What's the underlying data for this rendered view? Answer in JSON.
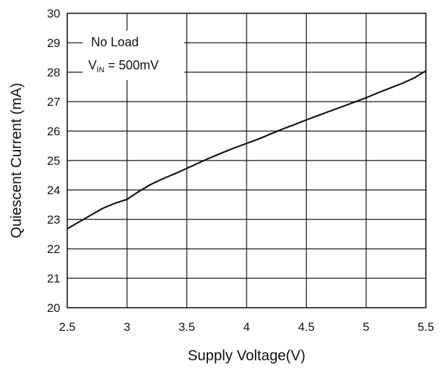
{
  "chart_data": {
    "type": "line",
    "xlabel": "Supply Voltage(V)",
    "ylabel": "Quiescent Current (mA)",
    "xlim": [
      2.5,
      5.5
    ],
    "ylim": [
      20,
      30
    ],
    "xticks": [
      2.5,
      3,
      3.5,
      4,
      4.5,
      5,
      5.5
    ],
    "xtick_labels": [
      "2.5",
      "3",
      "3.5",
      "4",
      "4.5",
      "5",
      "5.5"
    ],
    "yticks": [
      20,
      21,
      22,
      23,
      24,
      25,
      26,
      27,
      28,
      29,
      30
    ],
    "ytick_labels": [
      "20",
      "21",
      "22",
      "23",
      "24",
      "25",
      "26",
      "27",
      "28",
      "29",
      "30"
    ],
    "grid": true,
    "annotation": {
      "line1": "No Load",
      "line2_prefix": "V",
      "line2_sub": "IN",
      "line2_suffix": " = 500mV"
    },
    "series": [
      {
        "x": [
          2.5,
          2.6,
          2.7,
          2.8,
          2.9,
          3.0,
          3.1,
          3.2,
          3.3,
          3.4,
          3.5,
          3.6,
          3.7,
          3.8,
          3.9,
          4.0,
          4.1,
          4.2,
          4.3,
          4.4,
          4.5,
          4.6,
          4.7,
          4.8,
          4.9,
          5.0,
          5.1,
          5.2,
          5.3,
          5.4,
          5.5
        ],
        "y": [
          22.68,
          22.92,
          23.15,
          23.38,
          23.55,
          23.68,
          23.95,
          24.19,
          24.38,
          24.55,
          24.73,
          24.92,
          25.1,
          25.27,
          25.43,
          25.58,
          25.73,
          25.9,
          26.07,
          26.22,
          26.38,
          26.53,
          26.68,
          26.83,
          26.98,
          27.13,
          27.3,
          27.46,
          27.62,
          27.8,
          28.05
        ]
      }
    ]
  }
}
